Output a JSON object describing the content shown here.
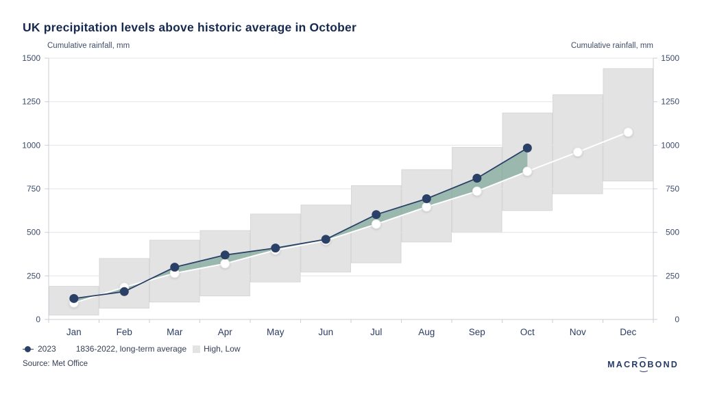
{
  "title": "UK precipitation levels above historic average in October",
  "axis_title_left": "Cumulative rainfall, mm",
  "axis_title_right": "Cumulative rainfall, mm",
  "legend": [
    {
      "label": "2023",
      "marker": "line-dot-navy"
    },
    {
      "label": "1836-2022, long-term average",
      "marker": "line-white"
    },
    {
      "label": "High, Low",
      "marker": "box-gray"
    }
  ],
  "source": "Source: Met Office",
  "logo": {
    "pre": "MACR",
    "o": "O",
    "post": "BOND"
  },
  "colors": {
    "navy": "#2b4067",
    "white_line": "#ffffff",
    "band_green": "#5f9680",
    "range_gray": "#e3e3e4",
    "range_border": "#d7d7d9",
    "gridline": "#e2e3e7",
    "axis_line": "#c9cdd6",
    "tick_label": "#3b4a6b",
    "month_label": "#2b3c63"
  },
  "chart_data": {
    "type": "line",
    "title": "UK precipitation levels above historic average in October",
    "ylabel": "Cumulative rainfall, mm",
    "ylim": [
      0,
      1500
    ],
    "y_ticks": [
      1500,
      1250,
      1000,
      750,
      500,
      250,
      0
    ],
    "grid": "horizontal",
    "legend_position": "bottom-left",
    "categories": [
      "Jan",
      "Feb",
      "Mar",
      "Apr",
      "May",
      "Jun",
      "Jul",
      "Aug",
      "Sep",
      "Oct",
      "Nov",
      "Dec"
    ],
    "series": [
      {
        "name": "2023",
        "style": "line+dot",
        "color": "#2b4067",
        "values": [
          120,
          160,
          300,
          370,
          410,
          460,
          602,
          693,
          811,
          984,
          null,
          null
        ]
      },
      {
        "name": "1836-2022, long-term average",
        "style": "line+dot",
        "color": "#ffffff",
        "values": [
          95,
          185,
          265,
          320,
          398,
          453,
          547,
          646,
          736,
          850,
          961,
          1075
        ]
      }
    ],
    "range_series": {
      "name": "High, Low",
      "high": [
        190,
        350,
        455,
        510,
        605,
        657,
        768,
        860,
        988,
        1185,
        1290,
        1440
      ],
      "low": [
        25,
        65,
        100,
        135,
        215,
        272,
        325,
        445,
        500,
        625,
        722,
        795
      ]
    },
    "band_between": {
      "upper": "2023",
      "lower": "1836-2022, long-term average",
      "color": "#5f9680",
      "opacity": 0.55
    }
  }
}
